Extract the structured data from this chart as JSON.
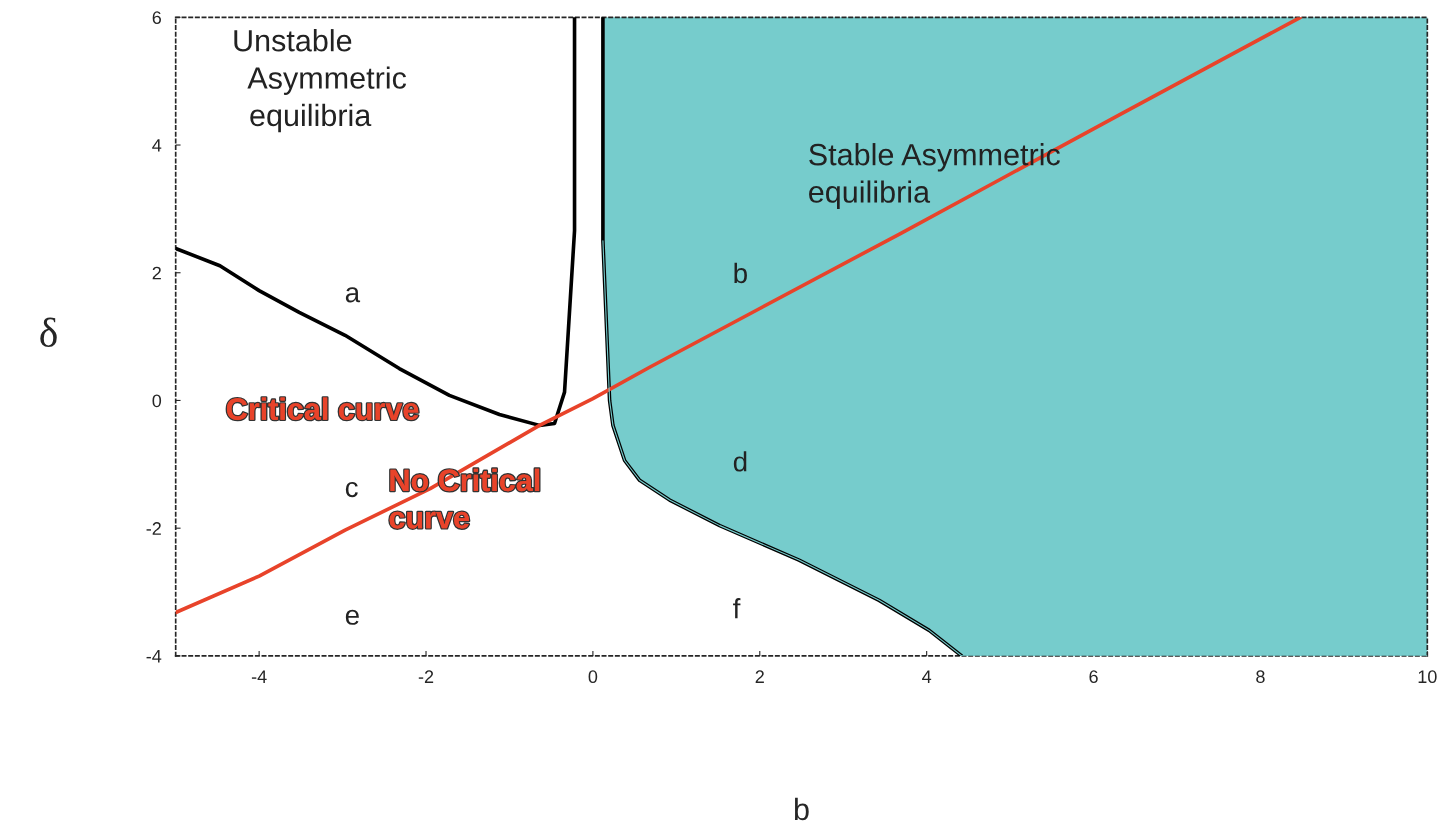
{
  "chart_data": {
    "type": "line",
    "xlabel": "b",
    "ylabel": "δ",
    "xlim": [
      -5,
      10
    ],
    "ylim": [
      -4,
      6
    ],
    "xticks": [
      -4,
      -2,
      0,
      2,
      4,
      6,
      8,
      10
    ],
    "yticks": [
      -4,
      -2,
      0,
      2,
      4,
      6
    ],
    "grid": false,
    "legend": false,
    "series": [
      {
        "color": "#76cccc",
        "x": [
          0.12,
          0.2,
          0.24,
          0.38,
          0.56,
          0.92,
          1.52,
          2.47,
          3.43,
          4.03,
          4.42,
          10
        ],
        "values": [
          2.5,
          0,
          -0.39,
          -0.94,
          -1.25,
          -1.56,
          -1.96,
          -2.5,
          -3.13,
          -3.6,
          -4,
          -4
        ],
        "lower": [
          2.5,
          0,
          -0.39,
          -0.94,
          -1.25,
          -1.56,
          -1.96,
          -2.5,
          -3.13,
          -3.6,
          -4,
          -4
        ],
        "upper": [
          6,
          6,
          6,
          6,
          6,
          6,
          6,
          6,
          6,
          6,
          6,
          6
        ]
      },
      {
        "color": "#000000",
        "x": [
          -5,
          -4.47,
          -4,
          -3.52,
          -2.97,
          -2.32,
          -1.72,
          -1.12,
          -0.64,
          -0.46,
          -0.34,
          -0.22,
          -0.22
        ],
        "values": [
          2.38,
          2.11,
          1.72,
          1.38,
          1.02,
          0.5,
          0.08,
          -0.22,
          -0.39,
          -0.36,
          0.13,
          2.66,
          6
        ]
      },
      {
        "color": "#000000",
        "x": [
          0.12,
          0.12,
          0.2,
          0.24,
          0.38,
          0.56,
          0.92,
          1.52,
          2.47,
          3.43,
          4.03,
          4.42
        ],
        "values": [
          6,
          2.5,
          0,
          -0.39,
          -0.94,
          -1.25,
          -1.56,
          -1.96,
          -2.5,
          -3.13,
          -3.6,
          -4
        ]
      },
      {
        "color": "#e8432a",
        "x": [
          -5,
          -4,
          -2.97,
          -1.95,
          -0.64,
          0,
          0.68,
          2,
          3.68,
          4.88,
          6.32,
          8.48
        ],
        "values": [
          -3.32,
          -2.75,
          -2.03,
          -1.38,
          -0.39,
          0.03,
          0.52,
          1.44,
          2.61,
          3.46,
          4.48,
          6
        ]
      }
    ],
    "annotations": [
      "Unstable\n  Asymmetric\n  equilibria",
      "Stable Asymmetric\nequilibria",
      "a",
      "b",
      "c",
      "d",
      "e",
      "f",
      "Critical curve",
      "No Critical\ncurve"
    ]
  }
}
